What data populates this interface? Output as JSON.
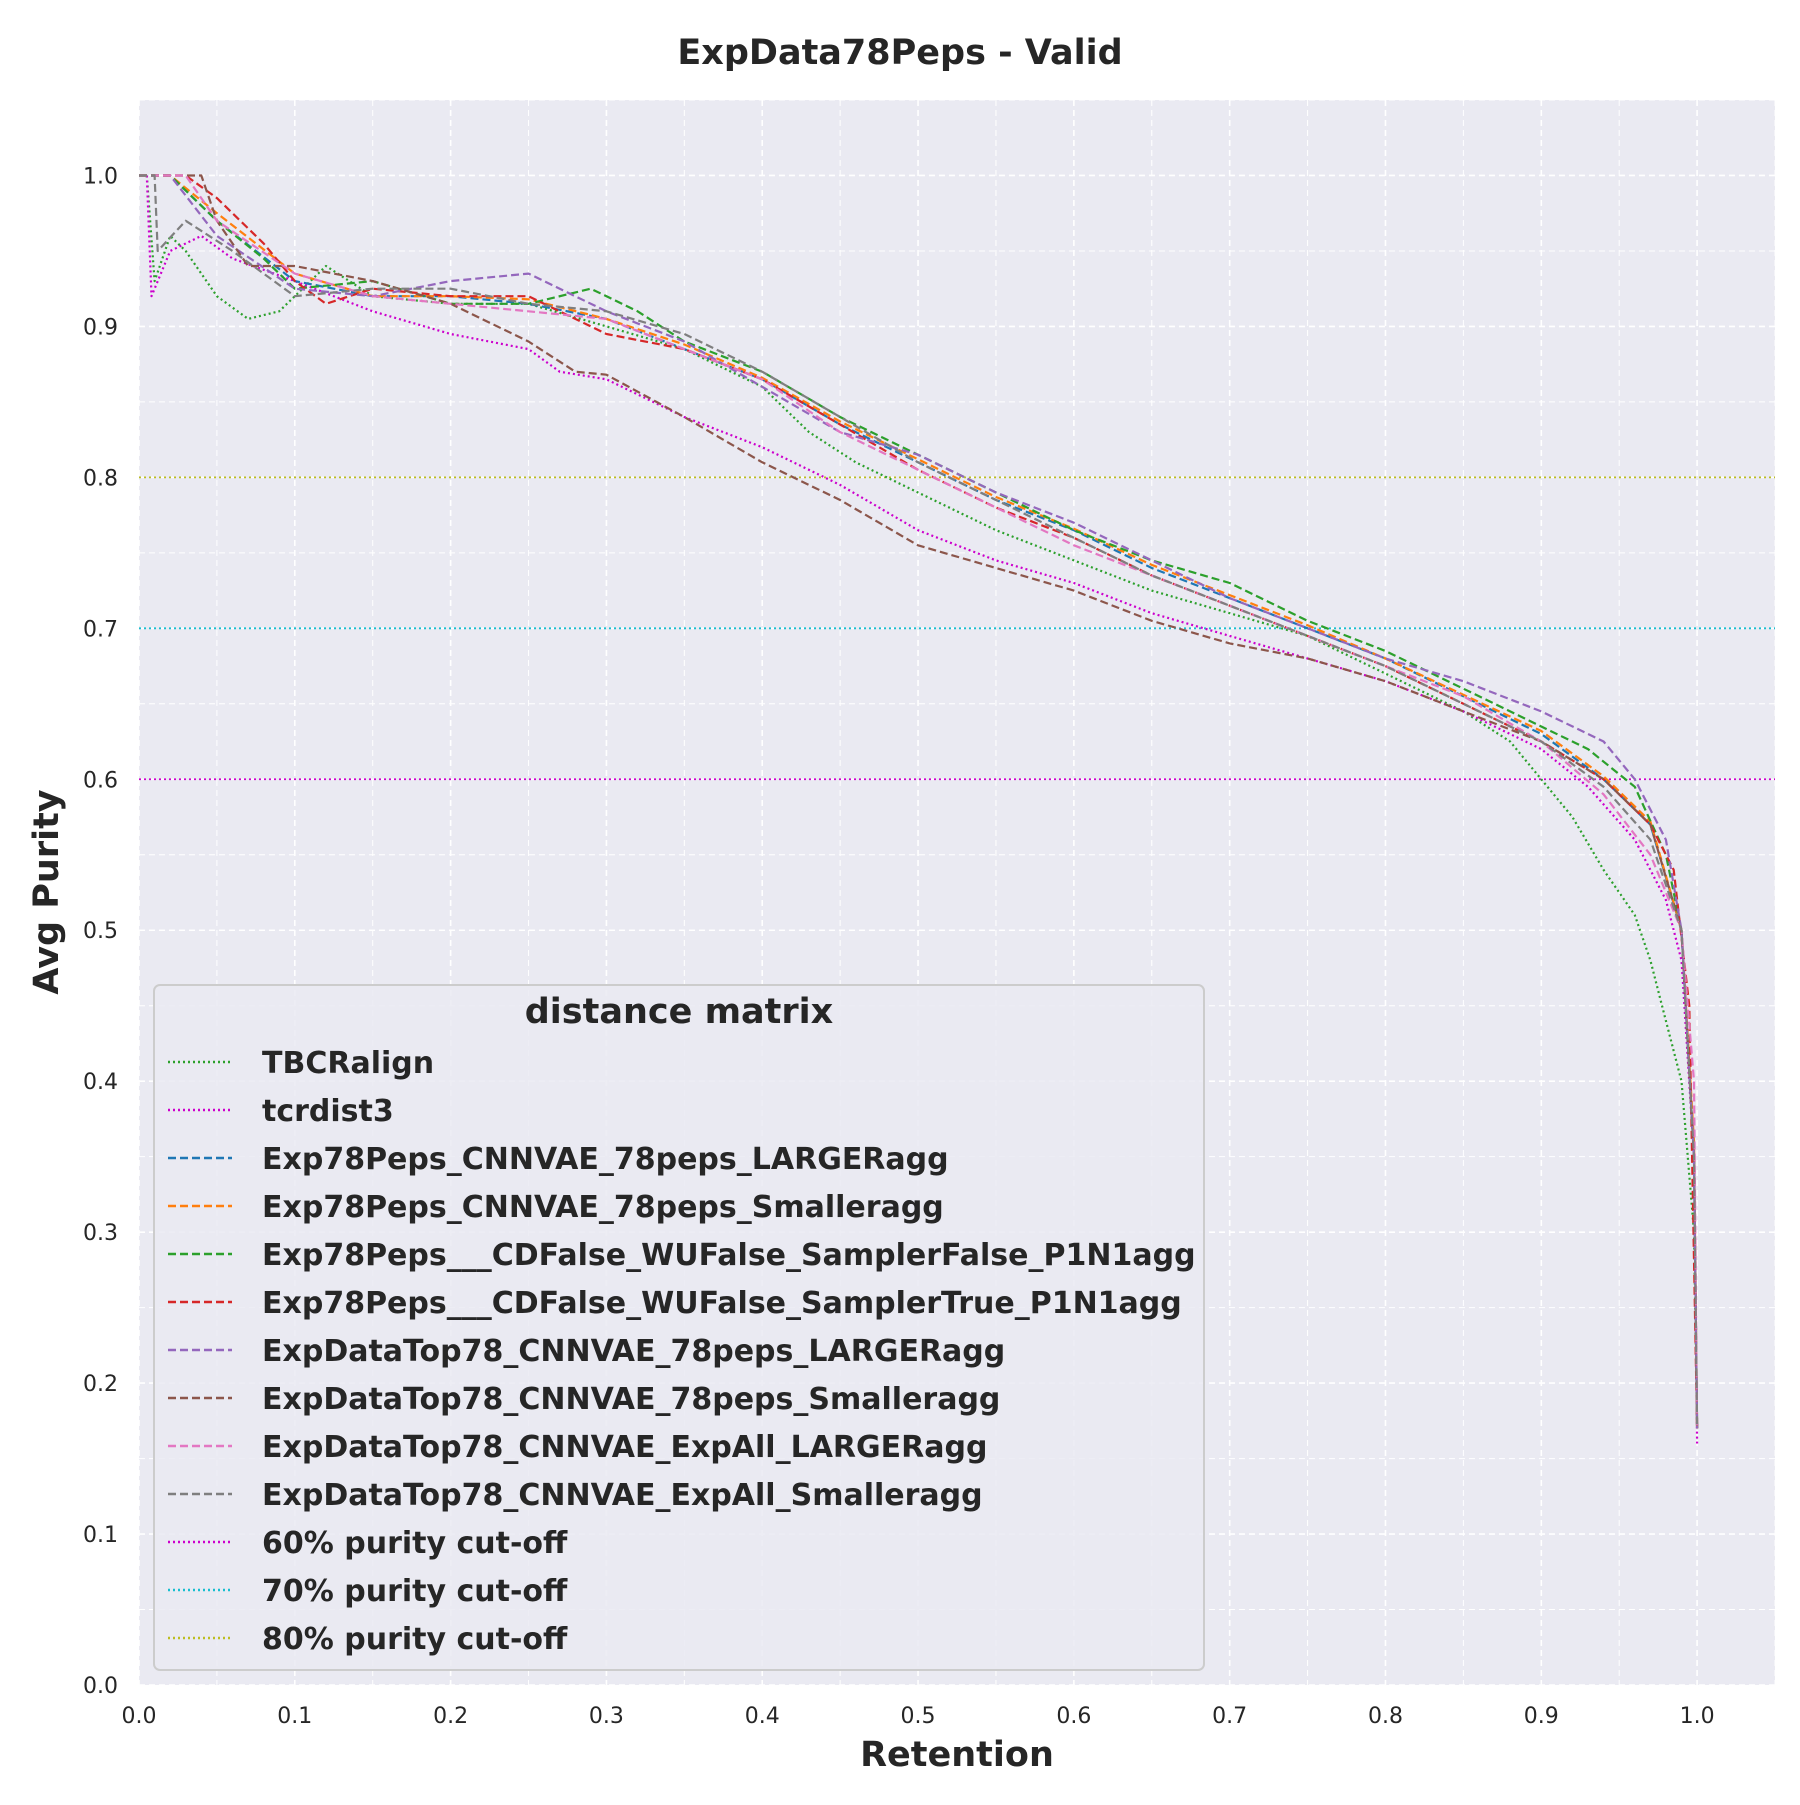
{
  "chart_data": {
    "type": "line",
    "title": "ExpData78Peps - Valid",
    "xlabel": "Retention",
    "ylabel": "Avg Purity",
    "xlim": [
      0.0,
      1.05
    ],
    "ylim": [
      0.0,
      1.05
    ],
    "xticks": [
      "0.0",
      "0.1",
      "0.2",
      "0.3",
      "0.4",
      "0.5",
      "0.6",
      "0.7",
      "0.8",
      "0.9",
      "1.0"
    ],
    "yticks": [
      "0.0",
      "0.1",
      "0.2",
      "0.3",
      "0.4",
      "0.5",
      "0.6",
      "0.7",
      "0.8",
      "0.9",
      "1.0"
    ],
    "grid": true,
    "background": "#eaeaf2",
    "legend": {
      "title": "distance matrix",
      "placement": "lower-left"
    },
    "series": [
      {
        "name": "TBCRalign",
        "color": "#2ca02c",
        "style": "dotted",
        "points": [
          [
            0.005,
            1.0
          ],
          [
            0.01,
            0.93
          ],
          [
            0.02,
            0.96
          ],
          [
            0.03,
            0.95
          ],
          [
            0.05,
            0.92
          ],
          [
            0.07,
            0.905
          ],
          [
            0.09,
            0.91
          ],
          [
            0.11,
            0.93
          ],
          [
            0.12,
            0.94
          ],
          [
            0.15,
            0.92
          ],
          [
            0.2,
            0.915
          ],
          [
            0.25,
            0.915
          ],
          [
            0.3,
            0.9
          ],
          [
            0.35,
            0.885
          ],
          [
            0.4,
            0.86
          ],
          [
            0.43,
            0.83
          ],
          [
            0.46,
            0.81
          ],
          [
            0.5,
            0.79
          ],
          [
            0.55,
            0.765
          ],
          [
            0.6,
            0.745
          ],
          [
            0.65,
            0.725
          ],
          [
            0.7,
            0.71
          ],
          [
            0.75,
            0.695
          ],
          [
            0.8,
            0.67
          ],
          [
            0.85,
            0.645
          ],
          [
            0.88,
            0.625
          ],
          [
            0.9,
            0.6
          ],
          [
            0.92,
            0.575
          ],
          [
            0.94,
            0.54
          ],
          [
            0.96,
            0.51
          ],
          [
            0.97,
            0.48
          ],
          [
            0.98,
            0.44
          ],
          [
            0.99,
            0.4
          ],
          [
            0.998,
            0.3
          ],
          [
            1.0,
            0.17
          ]
        ]
      },
      {
        "name": "tcrdist3",
        "color": "#cc00cc",
        "style": "dotted",
        "points": [
          [
            0.005,
            1.0
          ],
          [
            0.008,
            0.92
          ],
          [
            0.02,
            0.95
          ],
          [
            0.04,
            0.96
          ],
          [
            0.06,
            0.945
          ],
          [
            0.1,
            0.93
          ],
          [
            0.15,
            0.91
          ],
          [
            0.2,
            0.895
          ],
          [
            0.25,
            0.885
          ],
          [
            0.27,
            0.87
          ],
          [
            0.3,
            0.865
          ],
          [
            0.35,
            0.84
          ],
          [
            0.4,
            0.82
          ],
          [
            0.45,
            0.795
          ],
          [
            0.5,
            0.765
          ],
          [
            0.55,
            0.745
          ],
          [
            0.6,
            0.73
          ],
          [
            0.65,
            0.71
          ],
          [
            0.7,
            0.695
          ],
          [
            0.75,
            0.68
          ],
          [
            0.8,
            0.665
          ],
          [
            0.85,
            0.645
          ],
          [
            0.9,
            0.62
          ],
          [
            0.93,
            0.595
          ],
          [
            0.96,
            0.56
          ],
          [
            0.98,
            0.52
          ],
          [
            0.99,
            0.48
          ],
          [
            0.998,
            0.35
          ],
          [
            1.0,
            0.16
          ]
        ]
      },
      {
        "name": "Exp78Peps_CNNVAE_78peps_LARGERagg",
        "color": "#1f77b4",
        "style": "dashed",
        "points": [
          [
            0.0,
            1.0
          ],
          [
            0.02,
            1.0
          ],
          [
            0.05,
            0.97
          ],
          [
            0.1,
            0.93
          ],
          [
            0.15,
            0.92
          ],
          [
            0.2,
            0.92
          ],
          [
            0.25,
            0.915
          ],
          [
            0.3,
            0.905
          ],
          [
            0.35,
            0.885
          ],
          [
            0.4,
            0.865
          ],
          [
            0.45,
            0.835
          ],
          [
            0.5,
            0.81
          ],
          [
            0.55,
            0.785
          ],
          [
            0.6,
            0.765
          ],
          [
            0.65,
            0.74
          ],
          [
            0.7,
            0.72
          ],
          [
            0.75,
            0.7
          ],
          [
            0.8,
            0.68
          ],
          [
            0.85,
            0.655
          ],
          [
            0.9,
            0.63
          ],
          [
            0.94,
            0.6
          ],
          [
            0.97,
            0.57
          ],
          [
            0.99,
            0.5
          ],
          [
            0.998,
            0.35
          ],
          [
            1.0,
            0.17
          ]
        ]
      },
      {
        "name": "Exp78Peps_CNNVAE_78peps_Smalleragg",
        "color": "#ff7f0e",
        "style": "dashed",
        "points": [
          [
            0.0,
            1.0
          ],
          [
            0.02,
            1.0
          ],
          [
            0.05,
            0.975
          ],
          [
            0.1,
            0.935
          ],
          [
            0.15,
            0.92
          ],
          [
            0.2,
            0.92
          ],
          [
            0.25,
            0.918
          ],
          [
            0.3,
            0.905
          ],
          [
            0.35,
            0.888
          ],
          [
            0.4,
            0.866
          ],
          [
            0.45,
            0.837
          ],
          [
            0.5,
            0.812
          ],
          [
            0.55,
            0.787
          ],
          [
            0.6,
            0.766
          ],
          [
            0.65,
            0.742
          ],
          [
            0.7,
            0.722
          ],
          [
            0.75,
            0.702
          ],
          [
            0.8,
            0.68
          ],
          [
            0.85,
            0.656
          ],
          [
            0.9,
            0.632
          ],
          [
            0.94,
            0.602
          ],
          [
            0.97,
            0.572
          ],
          [
            0.99,
            0.5
          ],
          [
            0.998,
            0.36
          ],
          [
            1.0,
            0.17
          ]
        ]
      },
      {
        "name": "Exp78Peps___CDFalse_WUFalse_SamplerFalse_P1N1agg",
        "color": "#2ca02c",
        "style": "dashed",
        "points": [
          [
            0.0,
            1.0
          ],
          [
            0.02,
            1.0
          ],
          [
            0.05,
            0.97
          ],
          [
            0.08,
            0.945
          ],
          [
            0.1,
            0.925
          ],
          [
            0.15,
            0.93
          ],
          [
            0.2,
            0.915
          ],
          [
            0.25,
            0.915
          ],
          [
            0.29,
            0.925
          ],
          [
            0.32,
            0.91
          ],
          [
            0.35,
            0.89
          ],
          [
            0.4,
            0.87
          ],
          [
            0.45,
            0.84
          ],
          [
            0.5,
            0.815
          ],
          [
            0.55,
            0.79
          ],
          [
            0.6,
            0.765
          ],
          [
            0.65,
            0.745
          ],
          [
            0.7,
            0.73
          ],
          [
            0.75,
            0.705
          ],
          [
            0.8,
            0.685
          ],
          [
            0.85,
            0.66
          ],
          [
            0.9,
            0.635
          ],
          [
            0.93,
            0.62
          ],
          [
            0.96,
            0.595
          ],
          [
            0.98,
            0.55
          ],
          [
            0.99,
            0.5
          ],
          [
            0.998,
            0.35
          ],
          [
            1.0,
            0.17
          ]
        ]
      },
      {
        "name": "Exp78Peps___CDFalse_WUFalse_SamplerTrue_P1N1agg",
        "color": "#d62728",
        "style": "dashed",
        "points": [
          [
            0.0,
            1.0
          ],
          [
            0.03,
            1.0
          ],
          [
            0.05,
            0.985
          ],
          [
            0.08,
            0.955
          ],
          [
            0.1,
            0.93
          ],
          [
            0.12,
            0.915
          ],
          [
            0.15,
            0.925
          ],
          [
            0.2,
            0.92
          ],
          [
            0.25,
            0.92
          ],
          [
            0.3,
            0.895
          ],
          [
            0.35,
            0.885
          ],
          [
            0.4,
            0.865
          ],
          [
            0.45,
            0.835
          ],
          [
            0.5,
            0.805
          ],
          [
            0.55,
            0.78
          ],
          [
            0.6,
            0.76
          ],
          [
            0.65,
            0.735
          ],
          [
            0.7,
            0.715
          ],
          [
            0.75,
            0.695
          ],
          [
            0.8,
            0.675
          ],
          [
            0.85,
            0.65
          ],
          [
            0.9,
            0.625
          ],
          [
            0.94,
            0.6
          ],
          [
            0.97,
            0.57
          ],
          [
            0.985,
            0.54
          ],
          [
            0.995,
            0.45
          ],
          [
            1.0,
            0.17
          ]
        ]
      },
      {
        "name": "ExpDataTop78_CNNVAE_78peps_LARGERagg",
        "color": "#9467bd",
        "style": "dashed",
        "points": [
          [
            0.0,
            1.0
          ],
          [
            0.02,
            1.0
          ],
          [
            0.05,
            0.96
          ],
          [
            0.1,
            0.925
          ],
          [
            0.15,
            0.92
          ],
          [
            0.2,
            0.93
          ],
          [
            0.25,
            0.935
          ],
          [
            0.3,
            0.91
          ],
          [
            0.35,
            0.89
          ],
          [
            0.4,
            0.86
          ],
          [
            0.45,
            0.83
          ],
          [
            0.5,
            0.815
          ],
          [
            0.55,
            0.79
          ],
          [
            0.6,
            0.77
          ],
          [
            0.65,
            0.745
          ],
          [
            0.7,
            0.72
          ],
          [
            0.75,
            0.7
          ],
          [
            0.8,
            0.68
          ],
          [
            0.85,
            0.665
          ],
          [
            0.9,
            0.645
          ],
          [
            0.94,
            0.625
          ],
          [
            0.96,
            0.6
          ],
          [
            0.98,
            0.56
          ],
          [
            0.99,
            0.5
          ],
          [
            0.998,
            0.35
          ],
          [
            1.0,
            0.17
          ]
        ]
      },
      {
        "name": "ExpDataTop78_CNNVAE_78peps_Smalleragg",
        "color": "#8c564b",
        "style": "dashed",
        "points": [
          [
            0.0,
            1.0
          ],
          [
            0.04,
            1.0
          ],
          [
            0.05,
            0.97
          ],
          [
            0.07,
            0.94
          ],
          [
            0.1,
            0.94
          ],
          [
            0.15,
            0.93
          ],
          [
            0.2,
            0.915
          ],
          [
            0.25,
            0.89
          ],
          [
            0.28,
            0.87
          ],
          [
            0.3,
            0.868
          ],
          [
            0.35,
            0.84
          ],
          [
            0.4,
            0.81
          ],
          [
            0.45,
            0.785
          ],
          [
            0.5,
            0.755
          ],
          [
            0.55,
            0.74
          ],
          [
            0.6,
            0.725
          ],
          [
            0.65,
            0.705
          ],
          [
            0.7,
            0.69
          ],
          [
            0.75,
            0.68
          ],
          [
            0.8,
            0.665
          ],
          [
            0.85,
            0.645
          ],
          [
            0.9,
            0.625
          ],
          [
            0.94,
            0.6
          ],
          [
            0.97,
            0.57
          ],
          [
            0.99,
            0.5
          ],
          [
            0.998,
            0.35
          ],
          [
            1.0,
            0.17
          ]
        ]
      },
      {
        "name": "ExpDataTop78_CNNVAE_ExpAll_LARGERagg",
        "color": "#e377c2",
        "style": "dashed",
        "points": [
          [
            0.0,
            1.0
          ],
          [
            0.03,
            1.0
          ],
          [
            0.05,
            0.97
          ],
          [
            0.1,
            0.935
          ],
          [
            0.15,
            0.92
          ],
          [
            0.2,
            0.915
          ],
          [
            0.25,
            0.91
          ],
          [
            0.3,
            0.905
          ],
          [
            0.35,
            0.885
          ],
          [
            0.4,
            0.865
          ],
          [
            0.45,
            0.83
          ],
          [
            0.5,
            0.805
          ],
          [
            0.55,
            0.78
          ],
          [
            0.6,
            0.755
          ],
          [
            0.65,
            0.735
          ],
          [
            0.7,
            0.715
          ],
          [
            0.75,
            0.695
          ],
          [
            0.8,
            0.675
          ],
          [
            0.85,
            0.655
          ],
          [
            0.9,
            0.625
          ],
          [
            0.94,
            0.59
          ],
          [
            0.97,
            0.55
          ],
          [
            0.99,
            0.5
          ],
          [
            0.998,
            0.4
          ],
          [
            1.0,
            0.17
          ]
        ]
      },
      {
        "name": "ExpDataTop78_CNNVAE_ExpAll_Smalleragg",
        "color": "#7f7f7f",
        "style": "dashed",
        "points": [
          [
            0.0,
            1.0
          ],
          [
            0.01,
            1.0
          ],
          [
            0.012,
            0.95
          ],
          [
            0.03,
            0.97
          ],
          [
            0.06,
            0.95
          ],
          [
            0.1,
            0.92
          ],
          [
            0.15,
            0.925
          ],
          [
            0.2,
            0.925
          ],
          [
            0.25,
            0.915
          ],
          [
            0.3,
            0.91
          ],
          [
            0.35,
            0.895
          ],
          [
            0.4,
            0.87
          ],
          [
            0.45,
            0.84
          ],
          [
            0.5,
            0.81
          ],
          [
            0.55,
            0.785
          ],
          [
            0.6,
            0.76
          ],
          [
            0.65,
            0.735
          ],
          [
            0.7,
            0.715
          ],
          [
            0.75,
            0.695
          ],
          [
            0.8,
            0.675
          ],
          [
            0.85,
            0.65
          ],
          [
            0.9,
            0.625
          ],
          [
            0.94,
            0.595
          ],
          [
            0.97,
            0.56
          ],
          [
            0.99,
            0.5
          ],
          [
            0.998,
            0.35
          ],
          [
            1.0,
            0.17
          ]
        ]
      },
      {
        "name": "60% purity cut-off",
        "color": "#cc00cc",
        "style": "hline-dotted",
        "y": 0.6
      },
      {
        "name": "70% purity cut-off",
        "color": "#17becf",
        "style": "hline-dotted",
        "y": 0.7
      },
      {
        "name": "80% purity cut-off",
        "color": "#bcbd22",
        "style": "hline-dotted",
        "y": 0.8
      }
    ]
  }
}
